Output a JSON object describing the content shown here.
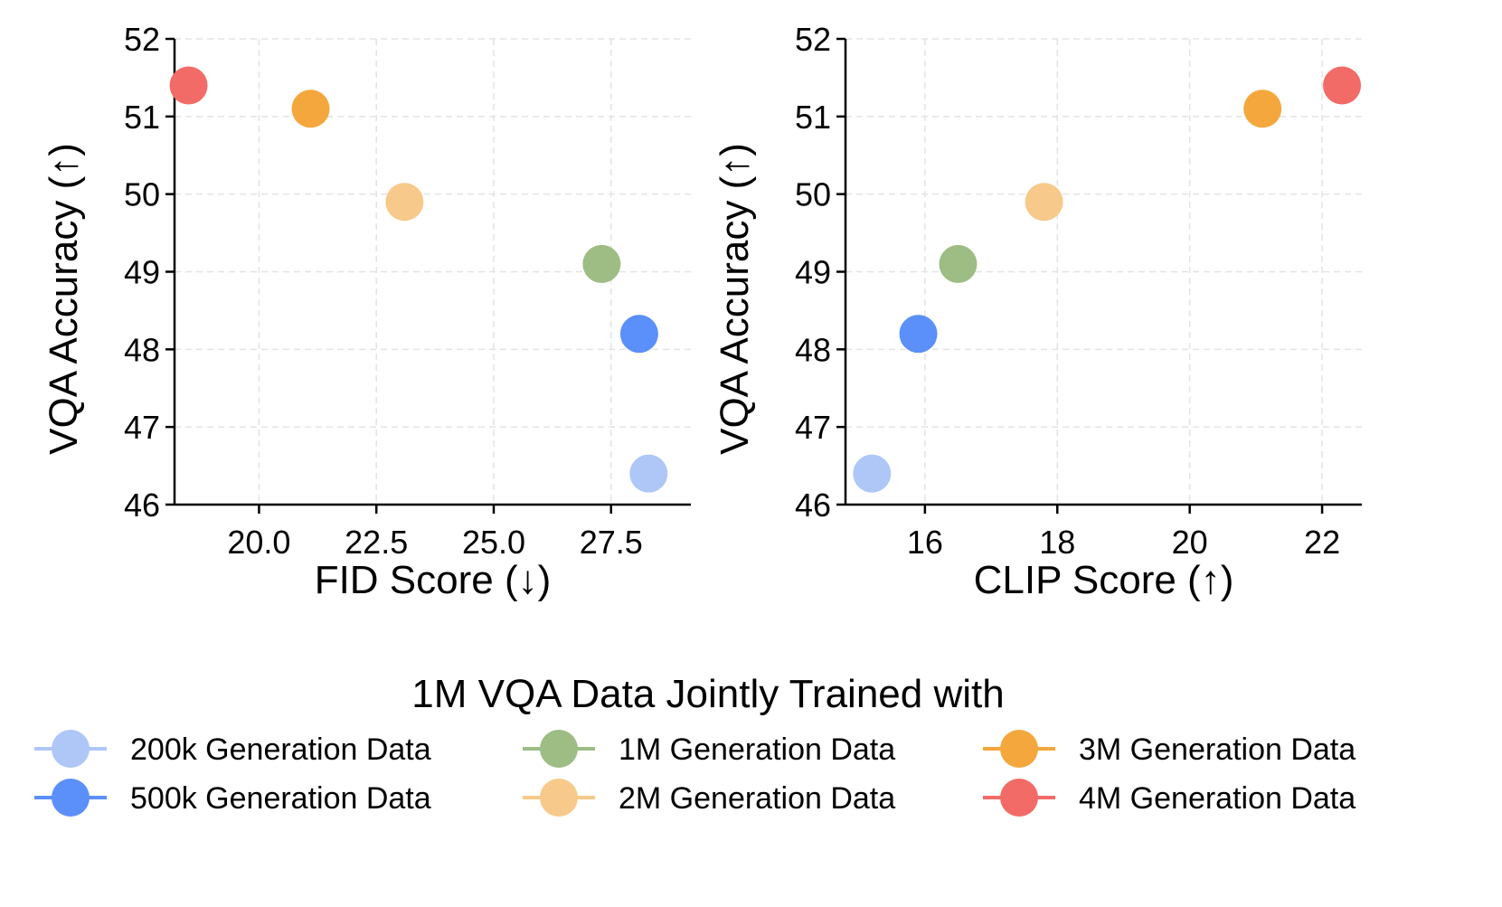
{
  "chart_data": [
    {
      "type": "scatter",
      "id": "fid",
      "xlabel": "FID Score (↓)",
      "ylabel": "VQA Accuracy (↑)",
      "xlim": [
        18.2,
        29.2
      ],
      "ylim": [
        46,
        52
      ],
      "xticks": [
        20.0,
        22.5,
        25.0,
        27.5
      ],
      "xtick_labels": [
        "20.0",
        "22.5",
        "25.0",
        "27.5"
      ],
      "yticks": [
        46,
        47,
        48,
        49,
        50,
        51,
        52
      ],
      "ytick_labels": [
        "46",
        "47",
        "48",
        "49",
        "50",
        "51",
        "52"
      ],
      "grid": true,
      "points": [
        {
          "series": "200k Generation Data",
          "x": 28.3,
          "y": 46.4
        },
        {
          "series": "500k Generation Data",
          "x": 28.1,
          "y": 48.2
        },
        {
          "series": "1M Generation Data",
          "x": 27.3,
          "y": 49.1
        },
        {
          "series": "2M Generation Data",
          "x": 23.1,
          "y": 49.9
        },
        {
          "series": "3M Generation Data",
          "x": 21.1,
          "y": 51.1
        },
        {
          "series": "4M Generation Data",
          "x": 18.5,
          "y": 51.4
        }
      ]
    },
    {
      "type": "scatter",
      "id": "clip",
      "xlabel": "CLIP Score (↑)",
      "ylabel": "VQA Accuracy (↑)",
      "xlim": [
        14.8,
        22.6
      ],
      "ylim": [
        46,
        52
      ],
      "xticks": [
        16,
        18,
        20,
        22
      ],
      "xtick_labels": [
        "16",
        "18",
        "20",
        "22"
      ],
      "yticks": [
        46,
        47,
        48,
        49,
        50,
        51,
        52
      ],
      "ytick_labels": [
        "46",
        "47",
        "48",
        "49",
        "50",
        "51",
        "52"
      ],
      "grid": true,
      "points": [
        {
          "series": "200k Generation Data",
          "x": 15.2,
          "y": 46.4
        },
        {
          "series": "500k Generation Data",
          "x": 15.9,
          "y": 48.2
        },
        {
          "series": "1M Generation Data",
          "x": 16.5,
          "y": 49.1
        },
        {
          "series": "2M Generation Data",
          "x": 17.8,
          "y": 49.9
        },
        {
          "series": "3M Generation Data",
          "x": 21.1,
          "y": 51.1
        },
        {
          "series": "4M Generation Data",
          "x": 22.3,
          "y": 51.4
        }
      ]
    }
  ],
  "legend": {
    "title": "1M VQA Data Jointly Trained with",
    "placement": "bottom-center",
    "columns": 3,
    "items": [
      {
        "label": "200k Generation Data",
        "color": "#aec7f7"
      },
      {
        "label": "500k Generation Data",
        "color": "#5b8ff9"
      },
      {
        "label": "1M Generation Data",
        "color": "#9dbd85"
      },
      {
        "label": "2M Generation Data",
        "color": "#f7c98a"
      },
      {
        "label": "3M Generation Data",
        "color": "#f4a73c"
      },
      {
        "label": "4M Generation Data",
        "color": "#f26b67"
      }
    ]
  }
}
